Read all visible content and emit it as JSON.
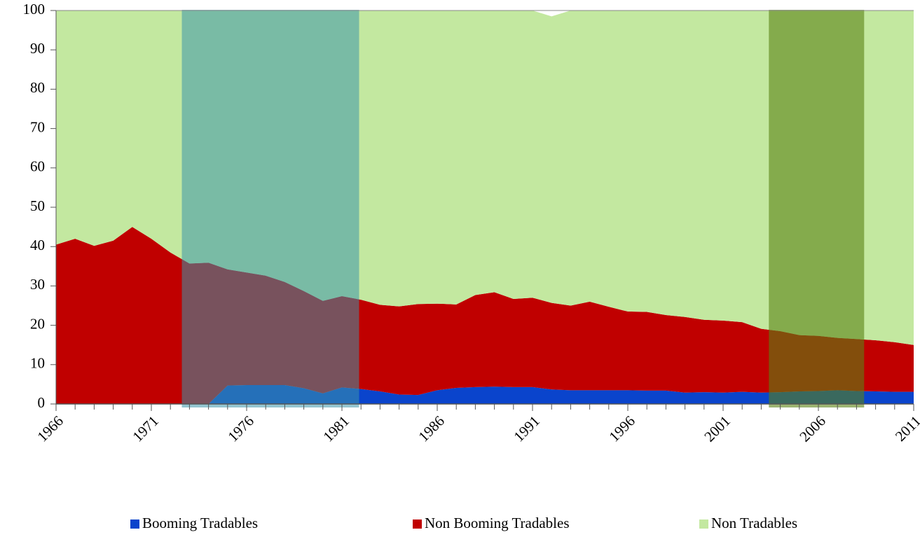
{
  "chart_data": {
    "type": "stacked-area",
    "x": [
      1966,
      1967,
      1968,
      1969,
      1970,
      1971,
      1972,
      1973,
      1974,
      1975,
      1976,
      1977,
      1978,
      1979,
      1980,
      1981,
      1982,
      1983,
      1984,
      1985,
      1986,
      1987,
      1988,
      1989,
      1990,
      1991,
      1992,
      1993,
      1994,
      1995,
      1996,
      1997,
      1998,
      1999,
      2000,
      2001,
      2002,
      2003,
      2004,
      2005,
      2006,
      2007,
      2008,
      2009,
      2010,
      2011
    ],
    "xlim": [
      1966,
      2011
    ],
    "xticks": [
      1966,
      1971,
      1976,
      1981,
      1986,
      1991,
      1996,
      2001,
      2006,
      2011
    ],
    "ylim": [
      0,
      100
    ],
    "yticks": [
      0,
      10,
      20,
      30,
      40,
      50,
      60,
      70,
      80,
      90,
      100
    ],
    "series": [
      {
        "name": "Booming Tradables",
        "color": "#0a44cc",
        "values": [
          0,
          0,
          0,
          0,
          0,
          0,
          0,
          0,
          0,
          4.7,
          4.8,
          4.8,
          4.8,
          4.0,
          2.7,
          4.2,
          3.8,
          3.2,
          2.4,
          2.3,
          3.5,
          4.1,
          4.3,
          4.4,
          4.3,
          4.3,
          3.7,
          3.5,
          3.5,
          3.5,
          3.5,
          3.4,
          3.4,
          2.9,
          3.0,
          2.9,
          3.1,
          2.9,
          3.0,
          3.2,
          3.3,
          3.5,
          3.3,
          3.2,
          3.1,
          3.1
        ]
      },
      {
        "name": "Non Booming Tradables",
        "color": "#c00000",
        "values": [
          40.5,
          42,
          40.2,
          41.5,
          45,
          42,
          38.5,
          35.7,
          35.9,
          29.5,
          28.6,
          27.8,
          26.2,
          24.7,
          23.5,
          23.2,
          22.7,
          22,
          22.4,
          23.1,
          22,
          21.2,
          23.4,
          24,
          22.4,
          22.7,
          22,
          21.5,
          22.5,
          21.2,
          20,
          20,
          19.2,
          19.2,
          18.4,
          18.3,
          17.7,
          16.2,
          15.5,
          14.3,
          14,
          13.3,
          13.2,
          13,
          12.6,
          11.9
        ]
      },
      {
        "name": "Non Tradables",
        "color": "#c3e8a0",
        "values": [
          59.5,
          58,
          59.8,
          58.5,
          55,
          58,
          61.5,
          64.3,
          64.1,
          65.8,
          66.6,
          67.4,
          69,
          71.3,
          73.8,
          72.6,
          73.5,
          74.8,
          75.2,
          74.6,
          74.5,
          74.7,
          72.3,
          71.6,
          73.3,
          73,
          72.8,
          75,
          74,
          75.3,
          76.5,
          76.6,
          77.4,
          77.9,
          78.6,
          78.8,
          79.2,
          80.9,
          81.5,
          82.5,
          82.7,
          83.2,
          83.5,
          83.8,
          84.3,
          85
        ]
      }
    ],
    "highlight_bands": [
      {
        "x": [
          1972.6,
          1981.9
        ],
        "color": "rgba(60,150,170,0.55)"
      },
      {
        "x": [
          2003.4,
          2008.4
        ],
        "color": "rgba(90,130,20,0.6)"
      }
    ],
    "legend": "bottom"
  }
}
